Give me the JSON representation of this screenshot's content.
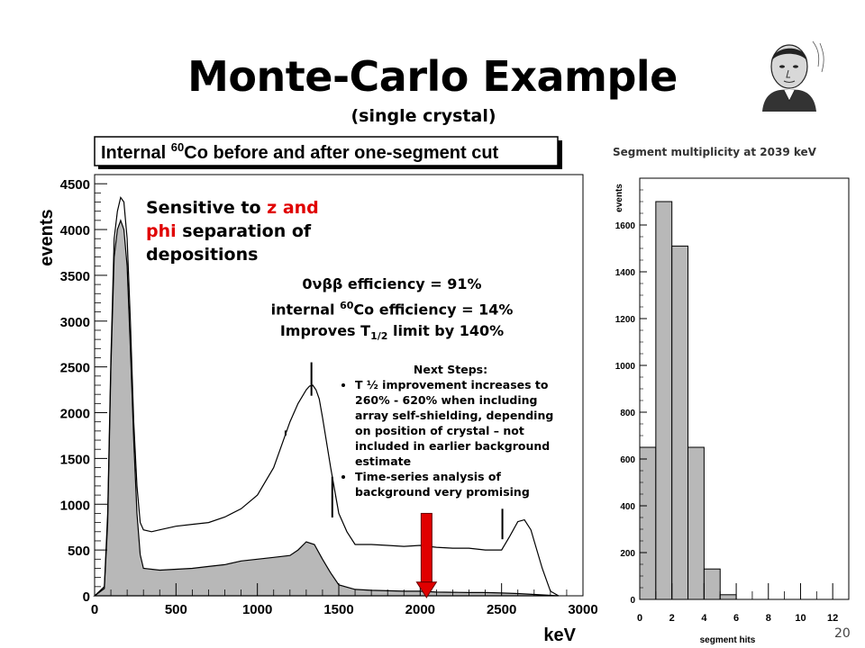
{
  "title": "Monte-Carlo Example",
  "subtitle": "(single crystal)",
  "portrait_icon": "portrait-photo",
  "notes": {
    "sensitive_prefix": "Sensitive to ",
    "sensitive_z": "z and",
    "sensitive_phi": "phi",
    "sensitive_rest": " separation of depositions",
    "eff_0nbb": "0νββ efficiency = 91%",
    "eff_co_a": "internal ",
    "eff_co_sup": "60",
    "eff_co_b": "Co efficiency = 14%",
    "improves_a": "Improves T",
    "improves_sub": "1/2",
    "improves_b": " limit by 140%",
    "next_title": "Next Steps:",
    "next_item1": "T ½ improvement increases to 260% - 620% when including array self-shielding, depending on position of crystal – not included in earlier background estimate",
    "next_item2": "Time-series analysis of background very promising"
  },
  "right_caption": "Segment multiplicity at 2039 keV",
  "page_number": "20",
  "colors": {
    "fill": "#b8b8b8",
    "arrow": "#e00000",
    "red_text": "#e00000"
  },
  "chart_data": [
    {
      "type": "line",
      "title": "Internal 60Co before and after one-segment cut",
      "xlabel": "keV",
      "ylabel": "events",
      "xlim": [
        0,
        3000
      ],
      "ylim": [
        0,
        4600
      ],
      "xticks": [
        "0",
        "500",
        "1000",
        "1500",
        "2000",
        "2500",
        "3000"
      ],
      "yticks": [
        "0",
        "500",
        "1000",
        "1500",
        "2000",
        "2500",
        "3000",
        "3500",
        "4000",
        "4500"
      ],
      "series": [
        {
          "name": "before",
          "x": [
            0,
            60,
            80,
            100,
            120,
            140,
            160,
            180,
            200,
            220,
            240,
            260,
            280,
            300,
            350,
            400,
            500,
            600,
            700,
            800,
            900,
            1000,
            1100,
            1150,
            1200,
            1250,
            1300,
            1320,
            1340,
            1360,
            1380,
            1400,
            1450,
            1500,
            1550,
            1600,
            1650,
            1700,
            1800,
            1900,
            2000,
            2100,
            2200,
            2300,
            2400,
            2500,
            2550,
            2600,
            2640,
            2680,
            2700,
            2750,
            2800,
            2850
          ],
          "y": [
            0,
            100,
            900,
            2600,
            3900,
            4200,
            4350,
            4300,
            3900,
            3000,
            1900,
            1200,
            800,
            720,
            700,
            720,
            760,
            780,
            800,
            860,
            950,
            1100,
            1400,
            1650,
            1900,
            2100,
            2250,
            2290,
            2300,
            2250,
            2150,
            1950,
            1400,
            900,
            700,
            560,
            560,
            560,
            550,
            540,
            550,
            530,
            520,
            520,
            500,
            500,
            650,
            810,
            830,
            720,
            600,
            300,
            50,
            0
          ]
        },
        {
          "name": "after",
          "x": [
            0,
            60,
            80,
            100,
            120,
            140,
            160,
            180,
            200,
            220,
            240,
            260,
            280,
            300,
            400,
            500,
            600,
            700,
            800,
            900,
            1000,
            1100,
            1200,
            1250,
            1300,
            1350,
            1400,
            1450,
            1500,
            1600,
            1700,
            1800,
            1900,
            2000,
            2100,
            2200,
            2300,
            2400,
            2500,
            2600,
            2700,
            2800,
            2850
          ],
          "y": [
            0,
            80,
            800,
            2500,
            3700,
            4000,
            4100,
            4000,
            3600,
            2700,
            1700,
            900,
            450,
            300,
            280,
            290,
            300,
            320,
            340,
            380,
            400,
            420,
            440,
            500,
            590,
            560,
            400,
            250,
            120,
            70,
            60,
            55,
            50,
            50,
            40,
            38,
            35,
            35,
            30,
            25,
            15,
            5,
            0
          ]
        }
      ],
      "spikes": [
        {
          "x": 1173,
          "y": 1750,
          "series": "before"
        },
        {
          "x": 1332,
          "y": 2550,
          "series": "before"
        },
        {
          "x": 1460,
          "y": 1300,
          "series": "before"
        },
        {
          "x": 2505,
          "y": 950,
          "series": "before"
        }
      ],
      "arrow_at_keV": 2039
    },
    {
      "type": "bar",
      "title": "Segment multiplicity at 2039 keV",
      "xlabel": "segment hits",
      "ylabel": "events",
      "xlim": [
        0,
        13
      ],
      "ylim": [
        0,
        1800
      ],
      "xticks": [
        "0",
        "2",
        "4",
        "6",
        "8",
        "10",
        "12"
      ],
      "yticks": [
        "0",
        "200",
        "400",
        "600",
        "800",
        "1000",
        "1200",
        "1400",
        "1600"
      ],
      "bins": [
        [
          0,
          1
        ],
        [
          1,
          2
        ],
        [
          2,
          3
        ],
        [
          3,
          4
        ],
        [
          4,
          5
        ],
        [
          5,
          6
        ],
        [
          6,
          7
        ]
      ],
      "values": [
        650,
        1700,
        1510,
        650,
        130,
        20,
        0
      ]
    }
  ]
}
